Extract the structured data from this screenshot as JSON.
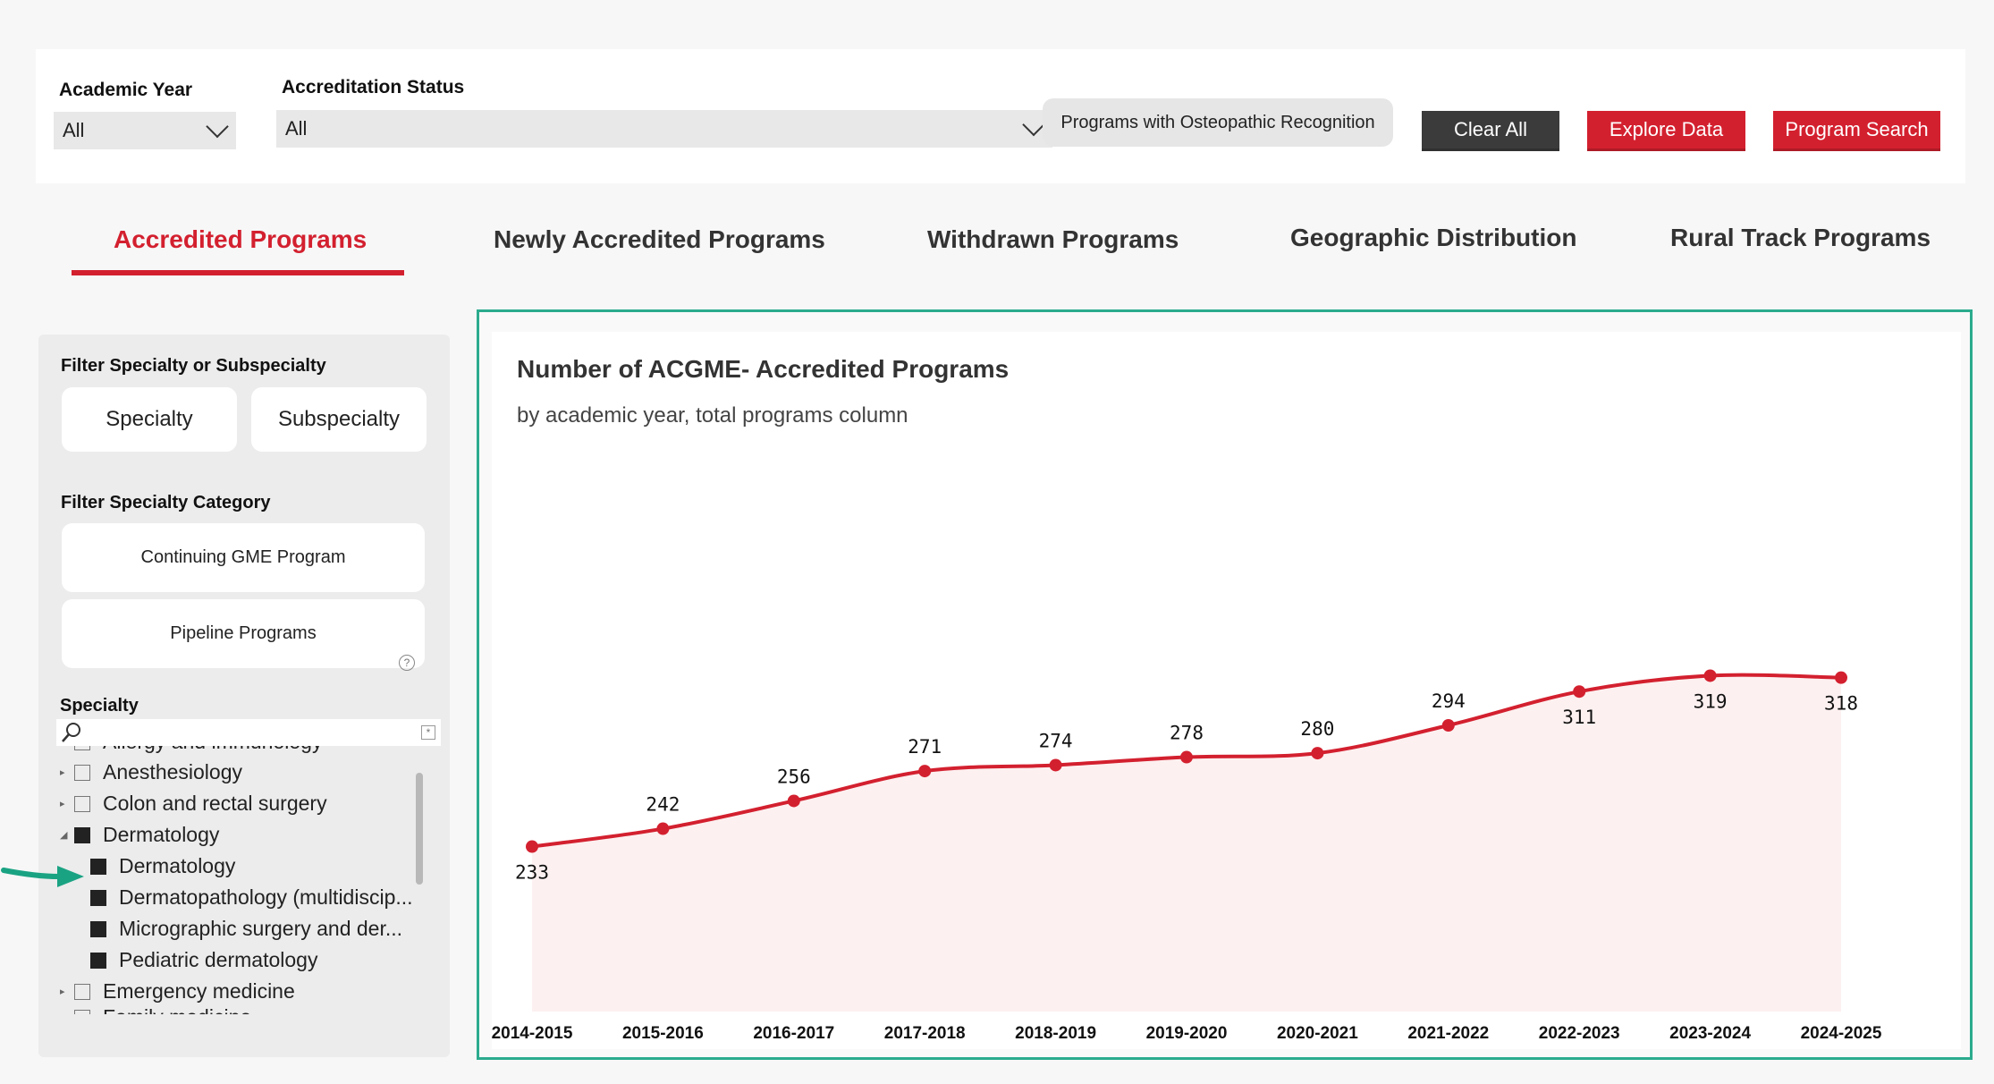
{
  "filters": {
    "academic_year": {
      "label": "Academic Year",
      "value": "All"
    },
    "accreditation_status": {
      "label": "Accreditation Status",
      "value": "All"
    },
    "osteopathic_button": "Programs with Osteopathic Recognition",
    "clear_all": "Clear All",
    "explore_data": "Explore Data",
    "program_search": "Program Search"
  },
  "tabs": [
    {
      "label": "Accredited Programs",
      "active": true
    },
    {
      "label": "Newly Accredited Programs",
      "active": false
    },
    {
      "label": "Withdrawn Programs",
      "active": false
    },
    {
      "label": "Geographic Distribution",
      "active": false
    },
    {
      "label": "Rural Track Programs",
      "active": false
    }
  ],
  "sidebar": {
    "specialty_filter_label": "Filter Specialty or Subspecialty",
    "specialty_btn": "Specialty",
    "subspecialty_btn": "Subspecialty",
    "category_label": "Filter Specialty Category",
    "continuing_btn": "Continuing GME Program",
    "pipeline_btn": "Pipeline Programs",
    "help_glyph": "?",
    "specialty_list_label": "Specialty",
    "clear_glyph": "*",
    "tree": [
      {
        "label": "Allergy and immunology",
        "level": 0,
        "checked": false
      },
      {
        "label": "Anesthesiology",
        "level": 0,
        "checked": false
      },
      {
        "label": "Colon and rectal surgery",
        "level": 0,
        "checked": false
      },
      {
        "label": "Dermatology",
        "level": 0,
        "checked": true,
        "expanded": true
      },
      {
        "label": "Dermatology",
        "level": 1,
        "checked": true
      },
      {
        "label": "Dermatopathology (multidiscip...",
        "level": 1,
        "checked": true
      },
      {
        "label": "Micrographic surgery and der...",
        "level": 1,
        "checked": true
      },
      {
        "label": "Pediatric dermatology",
        "level": 1,
        "checked": true
      },
      {
        "label": "Emergency medicine",
        "level": 0,
        "checked": false
      },
      {
        "label": "Family medicine",
        "level": 0,
        "checked": false
      }
    ]
  },
  "colors": {
    "accent": "#d3202f",
    "frame": "#2bab8e",
    "arrow": "#1aa383"
  },
  "chart_data": {
    "type": "area",
    "title": "Number of ACGME- Accredited Programs",
    "subtitle": "by academic year, total programs column",
    "categories": [
      "2014-2015",
      "2015-2016",
      "2016-2017",
      "2017-2018",
      "2018-2019",
      "2019-2020",
      "2020-2021",
      "2021-2022",
      "2022-2023",
      "2023-2024",
      "2024-2025"
    ],
    "values": [
      233,
      242,
      256,
      271,
      274,
      278,
      280,
      294,
      311,
      319,
      318
    ],
    "label_position": [
      "below",
      "above",
      "above",
      "above",
      "above",
      "above",
      "above",
      "above",
      "below",
      "below",
      "below"
    ],
    "line_color": "#d3202f",
    "fill_color": "#fdf0f0",
    "grid": false
  }
}
